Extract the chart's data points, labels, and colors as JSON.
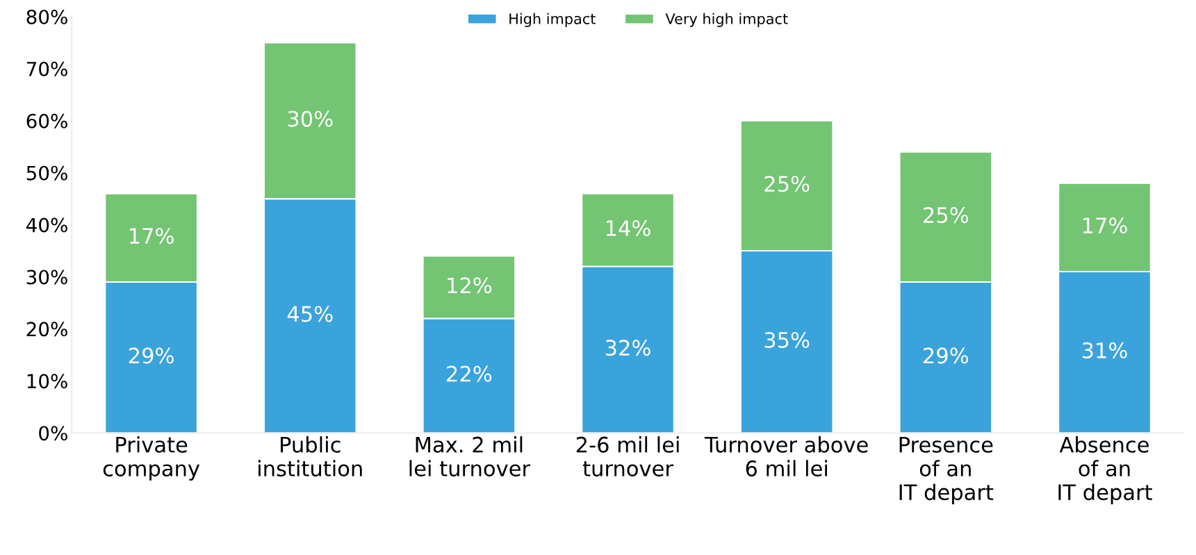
{
  "chart_data": {
    "type": "bar",
    "stacked": true,
    "legend": "top",
    "grid": false,
    "categories": [
      "Private\ncompany",
      "Public\ninstitution",
      "Max. 2 mil\nlei turnover",
      "2-6 mil lei\nturnover",
      "Turnover above\n6 mil lei",
      "Presence\nof an\nIT depart",
      "Absence\nof an\nIT depart"
    ],
    "series": [
      {
        "name": "High impact",
        "color": "#3ba3dc",
        "values": [
          29,
          45,
          22,
          32,
          35,
          29,
          31
        ],
        "value_labels": [
          "29%",
          "45%",
          "22%",
          "32%",
          "35%",
          "29%",
          "31%"
        ]
      },
      {
        "name": "Very high impact",
        "color": "#73c473",
        "values": [
          17,
          30,
          12,
          14,
          25,
          25,
          17
        ],
        "value_labels": [
          "17%",
          "30%",
          "12%",
          "14%",
          "25%",
          "25%",
          "17%"
        ]
      }
    ],
    "ylim": [
      0,
      80
    ],
    "yticks": [
      {
        "value": 0,
        "label": "0%"
      },
      {
        "value": 10,
        "label": "10%"
      },
      {
        "value": 20,
        "label": "20%"
      },
      {
        "value": 30,
        "label": "30%"
      },
      {
        "value": 40,
        "label": "40%"
      },
      {
        "value": 50,
        "label": "50%"
      },
      {
        "value": 60,
        "label": "60%"
      },
      {
        "value": 70,
        "label": "70%"
      },
      {
        "value": 80,
        "label": "80%"
      }
    ]
  }
}
